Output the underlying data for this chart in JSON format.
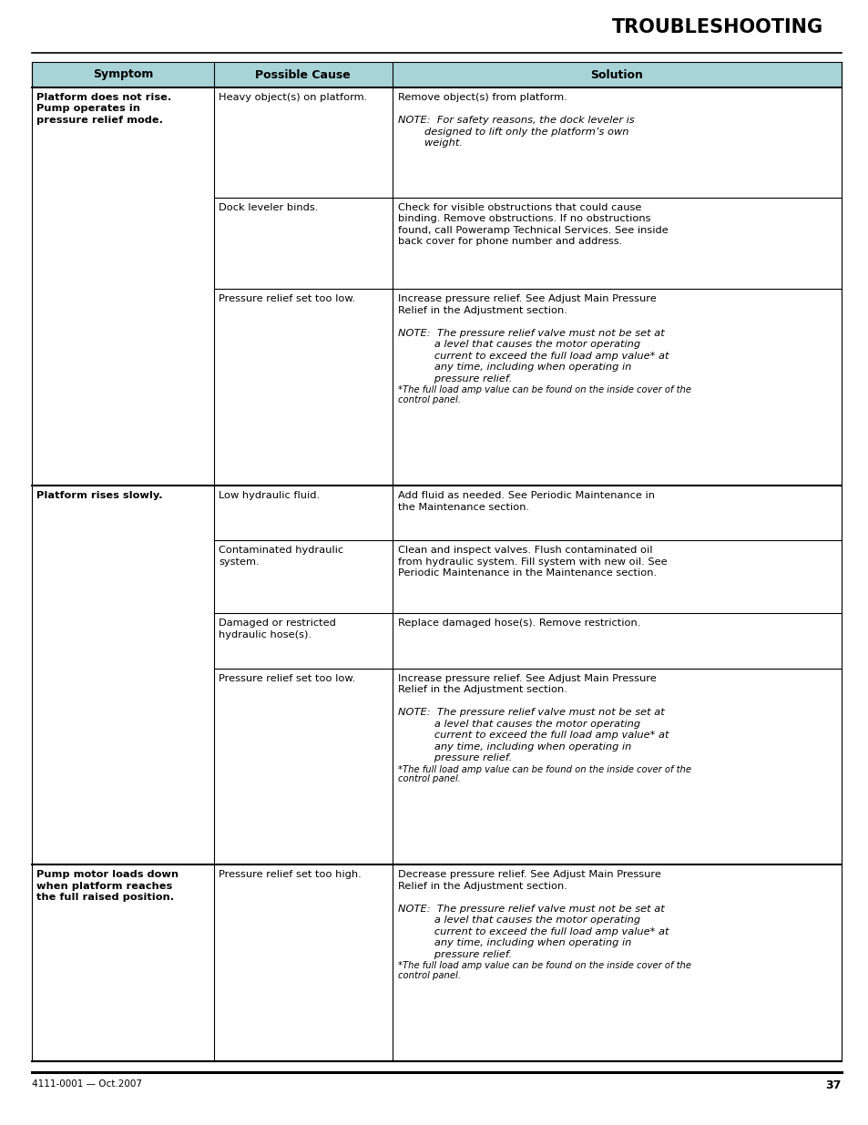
{
  "title": "TROUBLESHOOTING",
  "page_num": "37",
  "footer_left": "4111-0001 — Oct.2007",
  "bg_color": "#ffffff",
  "header_bg": "#a8d4d8",
  "col_headers": [
    "Symptom",
    "Possible Cause",
    "Solution"
  ],
  "col_splits": [
    0.22,
    0.44
  ],
  "table_groups": [
    {
      "symptom": "Platform does not rise.\nPump operates in\npressure relief mode.",
      "rows": [
        {
          "cause": "Heavy object(s) on platform.",
          "sol_parts": [
            {
              "text": "Remove object(s) from platform.",
              "style": "normal",
              "size": "body"
            },
            {
              "text": "",
              "style": "normal",
              "size": "body"
            },
            {
              "text": "NOTE:  For safety reasons, the dock leveler is",
              "style": "italic",
              "size": "body"
            },
            {
              "text": "        designed to lift only the platform’s own",
              "style": "italic",
              "size": "body"
            },
            {
              "text": "        weight.",
              "style": "italic",
              "size": "body"
            }
          ]
        },
        {
          "cause": "Dock leveler binds.",
          "sol_parts": [
            {
              "text": "Check for visible obstructions that could cause",
              "style": "normal",
              "size": "body"
            },
            {
              "text": "binding. Remove obstructions. If no obstructions",
              "style": "normal",
              "size": "body"
            },
            {
              "text": "found, call Poweramp Technical Services. See inside",
              "style": "normal",
              "size": "body"
            },
            {
              "text": "back cover for phone number and address.",
              "style": "normal",
              "size": "body"
            }
          ]
        },
        {
          "cause": "Pressure relief set too low.",
          "sol_parts": [
            {
              "text": "Increase pressure relief. See Adjust Main Pressure",
              "style": "normal",
              "size": "body"
            },
            {
              "text": "Relief in the Adjustment section.",
              "style": "normal",
              "size": "body"
            },
            {
              "text": "",
              "style": "normal",
              "size": "body"
            },
            {
              "text": "NOTE:  The pressure relief valve must not be set at",
              "style": "italic",
              "size": "body"
            },
            {
              "text": "           a level that causes the motor operating",
              "style": "italic",
              "size": "body"
            },
            {
              "text": "           current to exceed the full load amp value* at",
              "style": "italic",
              "size": "body"
            },
            {
              "text": "           any time, including when operating in",
              "style": "italic",
              "size": "body"
            },
            {
              "text": "           pressure relief.",
              "style": "italic",
              "size": "body"
            },
            {
              "text": "*The full load amp value can be found on the inside cover of the",
              "style": "italic",
              "size": "small"
            },
            {
              "text": "control panel.",
              "style": "italic",
              "size": "small"
            }
          ]
        }
      ]
    },
    {
      "symptom": "Platform rises slowly.",
      "rows": [
        {
          "cause": "Low hydraulic fluid.",
          "sol_parts": [
            {
              "text": "Add fluid as needed. See Periodic Maintenance in",
              "style": "normal",
              "size": "body"
            },
            {
              "text": "the Maintenance section.",
              "style": "normal",
              "size": "body"
            }
          ]
        },
        {
          "cause": "Contaminated hydraulic\nsystem.",
          "sol_parts": [
            {
              "text": "Clean and inspect valves. Flush contaminated oil",
              "style": "normal",
              "size": "body"
            },
            {
              "text": "from hydraulic system. Fill system with new oil. See",
              "style": "normal",
              "size": "body"
            },
            {
              "text": "Periodic Maintenance in the Maintenance section.",
              "style": "normal",
              "size": "body"
            }
          ]
        },
        {
          "cause": "Damaged or restricted\nhydraulic hose(s).",
          "sol_parts": [
            {
              "text": "Replace damaged hose(s). Remove restriction.",
              "style": "normal",
              "size": "body"
            }
          ]
        },
        {
          "cause": "Pressure relief set too low.",
          "sol_parts": [
            {
              "text": "Increase pressure relief. See Adjust Main Pressure",
              "style": "normal",
              "size": "body"
            },
            {
              "text": "Relief in the Adjustment section.",
              "style": "normal",
              "size": "body"
            },
            {
              "text": "",
              "style": "normal",
              "size": "body"
            },
            {
              "text": "NOTE:  The pressure relief valve must not be set at",
              "style": "italic",
              "size": "body"
            },
            {
              "text": "           a level that causes the motor operating",
              "style": "italic",
              "size": "body"
            },
            {
              "text": "           current to exceed the full load amp value* at",
              "style": "italic",
              "size": "body"
            },
            {
              "text": "           any time, including when operating in",
              "style": "italic",
              "size": "body"
            },
            {
              "text": "           pressure relief.",
              "style": "italic",
              "size": "body"
            },
            {
              "text": "*The full load amp value can be found on the inside cover of the",
              "style": "italic",
              "size": "small"
            },
            {
              "text": "control panel.",
              "style": "italic",
              "size": "small"
            }
          ]
        }
      ]
    },
    {
      "symptom": "Pump motor loads down\nwhen platform reaches\nthe full raised position.",
      "rows": [
        {
          "cause": "Pressure relief set too high.",
          "sol_parts": [
            {
              "text": "Decrease pressure relief. See Adjust Main Pressure",
              "style": "normal",
              "size": "body"
            },
            {
              "text": "Relief in the Adjustment section.",
              "style": "normal",
              "size": "body"
            },
            {
              "text": "",
              "style": "normal",
              "size": "body"
            },
            {
              "text": "NOTE:  The pressure relief valve must not be set at",
              "style": "italic",
              "size": "body"
            },
            {
              "text": "           a level that causes the motor operating",
              "style": "italic",
              "size": "body"
            },
            {
              "text": "           current to exceed the full load amp value* at",
              "style": "italic",
              "size": "body"
            },
            {
              "text": "           any time, including when operating in",
              "style": "italic",
              "size": "body"
            },
            {
              "text": "           pressure relief.",
              "style": "italic",
              "size": "body"
            },
            {
              "text": "*The full load amp value can be found on the inside cover of the",
              "style": "italic",
              "size": "small"
            },
            {
              "text": "control panel.",
              "style": "italic",
              "size": "small"
            }
          ]
        }
      ]
    }
  ]
}
